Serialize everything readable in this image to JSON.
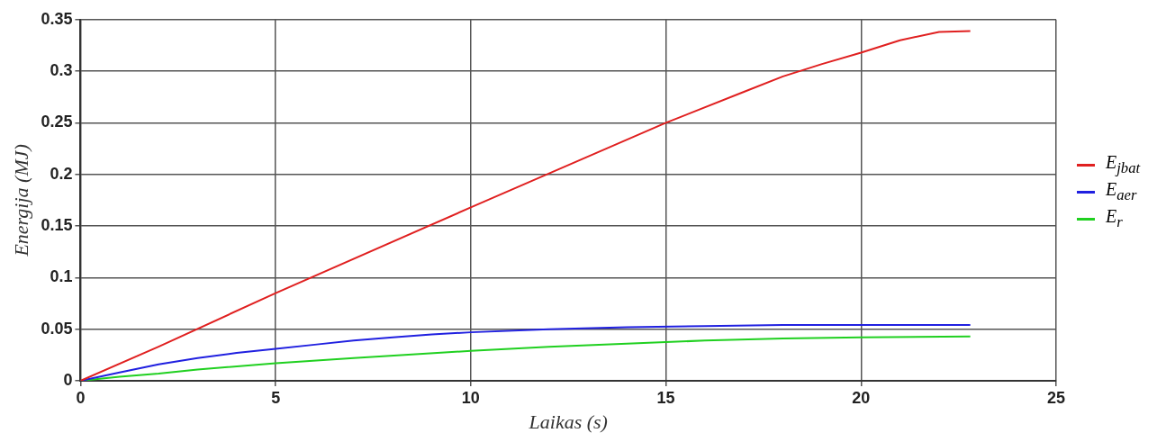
{
  "chart_data": {
    "type": "line",
    "xlabel": "Laikas (s)",
    "ylabel": "Energija (MJ)",
    "xlim": [
      0,
      25
    ],
    "xticks": [
      0,
      5,
      10,
      15,
      20,
      25
    ],
    "ylim": [
      0,
      0.35
    ],
    "yticks": [
      0,
      0.05,
      0.1,
      0.15,
      0.2,
      0.25,
      0.3,
      0.35
    ],
    "grid": true,
    "legend": "right",
    "marker": "none",
    "line_style": "solid",
    "series": [
      {
        "name": "E$_{jbat}$",
        "color": "#e02020",
        "x": [
          0,
          2,
          5,
          10,
          15,
          17,
          18,
          19,
          20,
          21,
          22,
          22.8
        ],
        "values": [
          0,
          0.033,
          0.085,
          0.168,
          0.25,
          0.28,
          0.295,
          0.307,
          0.318,
          0.33,
          0.338,
          0.339
        ]
      },
      {
        "name": "E$_{aer}$",
        "color": "#2020e0",
        "x": [
          0,
          1,
          2,
          3,
          4,
          5,
          6,
          7,
          8,
          9,
          10,
          12,
          14,
          16,
          18,
          20,
          22.8
        ],
        "values": [
          0,
          0.008,
          0.016,
          0.022,
          0.027,
          0.031,
          0.035,
          0.039,
          0.042,
          0.045,
          0.047,
          0.05,
          0.052,
          0.053,
          0.054,
          0.054,
          0.054
        ]
      },
      {
        "name": "E$_{r}$",
        "color": "#20d020",
        "x": [
          0,
          1,
          2,
          3,
          5,
          7,
          10,
          12,
          14,
          16,
          18,
          20,
          22.8
        ],
        "values": [
          0,
          0.004,
          0.007,
          0.011,
          0.017,
          0.022,
          0.029,
          0.033,
          0.036,
          0.039,
          0.041,
          0.042,
          0.043
        ]
      }
    ]
  }
}
